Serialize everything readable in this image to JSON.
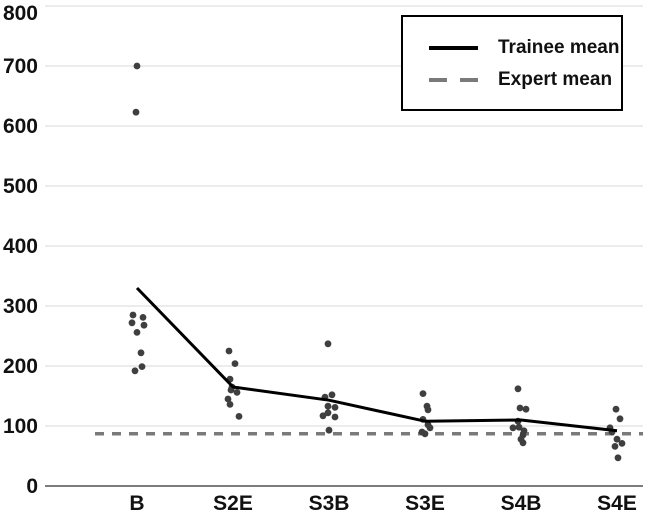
{
  "chart_data": {
    "type": "scatter",
    "title": "",
    "xlabel": "",
    "ylabel": "",
    "grid": true,
    "legend_position": "top-right",
    "categories": [
      "B",
      "S2E",
      "S3B",
      "S3E",
      "S4B",
      "S4E"
    ],
    "y_axis": {
      "min": 0,
      "max": 800,
      "step": 100,
      "tick_labels": [
        "0",
        "100",
        "200",
        "300",
        "400",
        "500",
        "600",
        "700",
        "800"
      ]
    },
    "legend": {
      "trainee": {
        "label": "Trainee mean",
        "style": "solid",
        "color": "#000000"
      },
      "expert": {
        "label": "Expert mean",
        "style": "dashed",
        "color": "#7a7a7a"
      }
    },
    "series": [
      {
        "name": "Trainee mean",
        "type": "line",
        "values": [
          330,
          165,
          143,
          108,
          110,
          92
        ]
      },
      {
        "name": "Expert mean",
        "type": "reference-line",
        "value": 87
      }
    ],
    "scatter_points": [
      {
        "category": "B",
        "points": [
          {
            "v": 700,
            "dx": 0
          },
          {
            "v": 623,
            "dx": -1
          },
          {
            "v": 285,
            "dx": -4
          },
          {
            "v": 281,
            "dx": 6
          },
          {
            "v": 272,
            "dx": -5
          },
          {
            "v": 268,
            "dx": 7
          },
          {
            "v": 256,
            "dx": 0
          },
          {
            "v": 222,
            "dx": 4
          },
          {
            "v": 199,
            "dx": 5
          },
          {
            "v": 192,
            "dx": -2
          }
        ]
      },
      {
        "category": "S2E",
        "points": [
          {
            "v": 225,
            "dx": -4
          },
          {
            "v": 204,
            "dx": 2
          },
          {
            "v": 178,
            "dx": -3
          },
          {
            "v": 165,
            "dx": -1
          },
          {
            "v": 160,
            "dx": -2
          },
          {
            "v": 156,
            "dx": 4
          },
          {
            "v": 145,
            "dx": -5
          },
          {
            "v": 136,
            "dx": -3
          },
          {
            "v": 116,
            "dx": 6
          }
        ]
      },
      {
        "category": "S3B",
        "points": [
          {
            "v": 237,
            "dx": -1
          },
          {
            "v": 152,
            "dx": 3
          },
          {
            "v": 148,
            "dx": -4
          },
          {
            "v": 133,
            "dx": -1
          },
          {
            "v": 131,
            "dx": 6
          },
          {
            "v": 122,
            "dx": -1
          },
          {
            "v": 117,
            "dx": -6
          },
          {
            "v": 115,
            "dx": 6
          },
          {
            "v": 93,
            "dx": 0
          }
        ]
      },
      {
        "category": "S3E",
        "points": [
          {
            "v": 154,
            "dx": -2
          },
          {
            "v": 133,
            "dx": 2
          },
          {
            "v": 127,
            "dx": 3
          },
          {
            "v": 111,
            "dx": -2
          },
          {
            "v": 102,
            "dx": 3
          },
          {
            "v": 97,
            "dx": 5
          },
          {
            "v": 90,
            "dx": -3
          },
          {
            "v": 87,
            "dx": 0
          }
        ]
      },
      {
        "category": "S4B",
        "points": [
          {
            "v": 162,
            "dx": -3
          },
          {
            "v": 130,
            "dx": -1
          },
          {
            "v": 128,
            "dx": 5
          },
          {
            "v": 108,
            "dx": -3
          },
          {
            "v": 98,
            "dx": -2
          },
          {
            "v": 97,
            "dx": -8
          },
          {
            "v": 92,
            "dx": 3
          },
          {
            "v": 85,
            "dx": 2
          },
          {
            "v": 78,
            "dx": 0
          },
          {
            "v": 72,
            "dx": 2
          }
        ]
      },
      {
        "category": "S4E",
        "points": [
          {
            "v": 128,
            "dx": -1
          },
          {
            "v": 112,
            "dx": 3
          },
          {
            "v": 97,
            "dx": -7
          },
          {
            "v": 90,
            "dx": -5
          },
          {
            "v": 78,
            "dx": 0
          },
          {
            "v": 71,
            "dx": 5
          },
          {
            "v": 66,
            "dx": -2
          },
          {
            "v": 47,
            "dx": 1
          }
        ]
      }
    ],
    "colors": {
      "point": "#3f3f3f",
      "trainee_line": "#000000",
      "expert_line": "#7a7a7a",
      "gridline": "#d8d8d8",
      "axis_line": "#6a6a6a",
      "text": "#111111",
      "background": "#ffffff",
      "legend_border": "#000000"
    }
  }
}
